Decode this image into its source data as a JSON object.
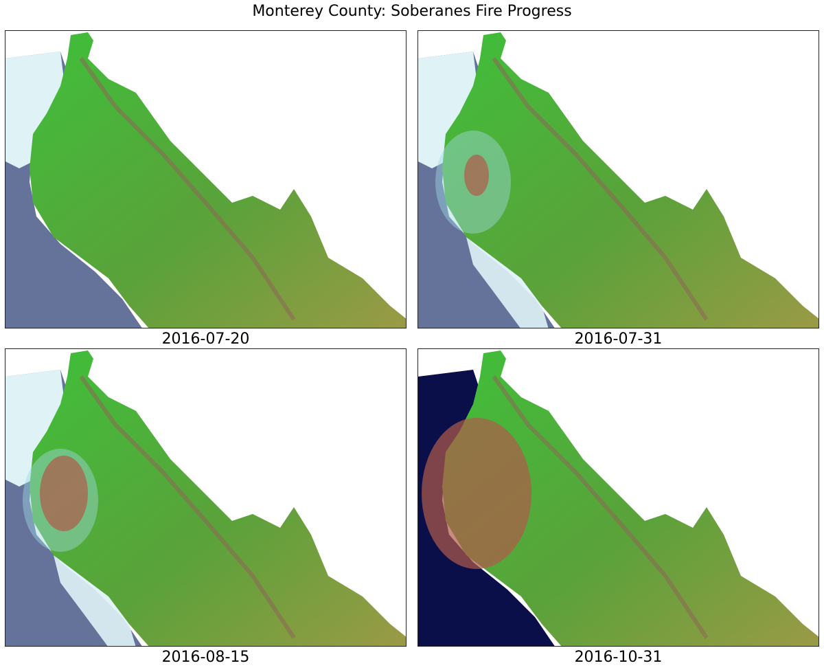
{
  "figure": {
    "title": "Monterey County: Soberanes Fire Progress",
    "panels": [
      {
        "date": "2016-07-20",
        "scene": "clouds-north",
        "burn": "none"
      },
      {
        "date": "2016-07-31",
        "scene": "clouds-coast-smoke",
        "burn": "early"
      },
      {
        "date": "2016-08-15",
        "scene": "clouds-coast-smoke",
        "burn": "spreading"
      },
      {
        "date": "2016-10-31",
        "scene": "clear-ocean",
        "burn": "extensive"
      }
    ]
  },
  "colors": {
    "ocean": "#0a0f4a",
    "cloud": "#dff3f7",
    "vegetation": "#3fbf3a",
    "dry_land": "#9b9a45",
    "burn_scar": "#b05a4a",
    "border": "#222222"
  }
}
